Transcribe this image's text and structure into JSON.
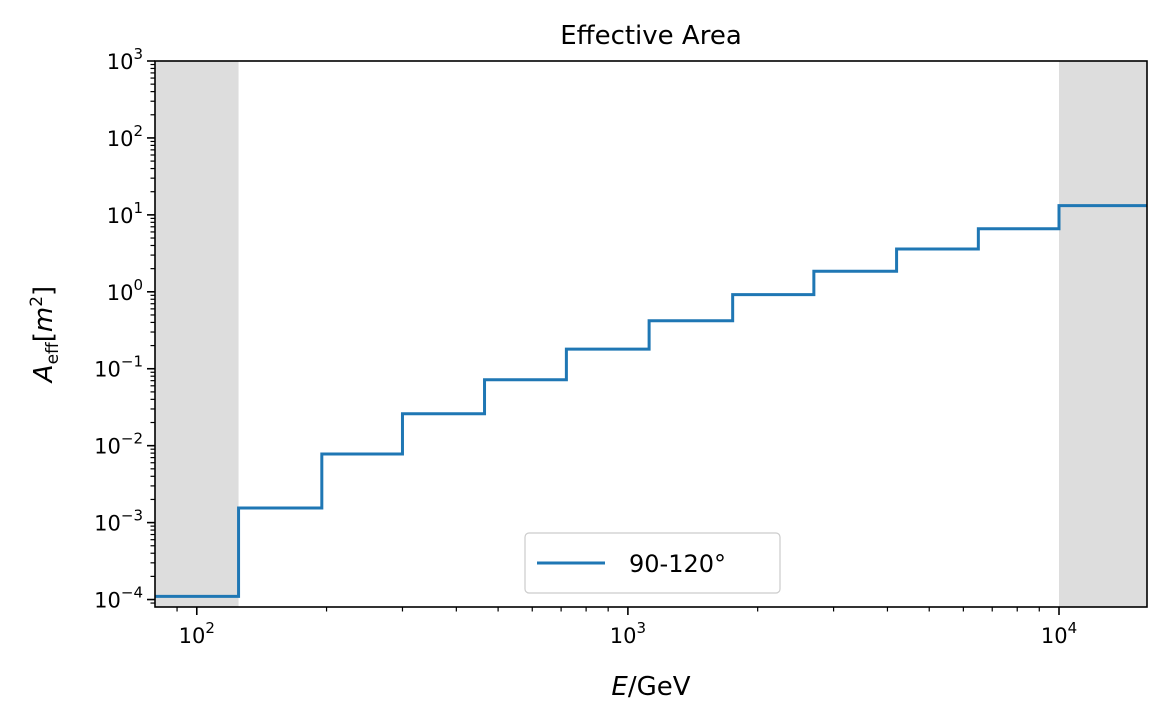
{
  "chart_data": {
    "type": "line",
    "drawstyle": "steps-post",
    "title": "Effective Area",
    "xlabel": "E/GeV",
    "ylabel": "A_eff[m^2]",
    "xscale": "log",
    "yscale": "log",
    "xlim": [
      80,
      16000
    ],
    "ylim": [
      8e-05,
      1000
    ],
    "x_ticks": [
      {
        "value": 100,
        "base": "10",
        "exp": "2"
      },
      {
        "value": 1000,
        "base": "10",
        "exp": "3"
      },
      {
        "value": 10000,
        "base": "10",
        "exp": "4"
      }
    ],
    "y_ticks": [
      {
        "value": 0.0001,
        "base": "10",
        "exp": "−4"
      },
      {
        "value": 0.001,
        "base": "10",
        "exp": "−3"
      },
      {
        "value": 0.01,
        "base": "10",
        "exp": "−2"
      },
      {
        "value": 0.1,
        "base": "10",
        "exp": "−1"
      },
      {
        "value": 1,
        "base": "10",
        "exp": "0"
      },
      {
        "value": 10,
        "base": "10",
        "exp": "1"
      },
      {
        "value": 100,
        "base": "10",
        "exp": "2"
      },
      {
        "value": 1000,
        "base": "10",
        "exp": "3"
      }
    ],
    "shaded_regions": [
      {
        "x0": 80,
        "x1": 125,
        "color": "#dddddd"
      },
      {
        "x0": 10000,
        "x1": 16000,
        "color": "#dddddd"
      }
    ],
    "grid": false,
    "legend": {
      "position": "bottom-center"
    },
    "series": [
      {
        "name": "90-120°",
        "color": "#1f77b4",
        "x": [
          80,
          125,
          195,
          300,
          465,
          720,
          1120,
          1750,
          2700,
          4200,
          6500,
          10000,
          16000
        ],
        "y": [
          0.00011,
          0.00155,
          0.0078,
          0.026,
          0.072,
          0.18,
          0.42,
          0.92,
          1.85,
          3.6,
          6.6,
          13.2,
          13.2
        ]
      }
    ]
  }
}
